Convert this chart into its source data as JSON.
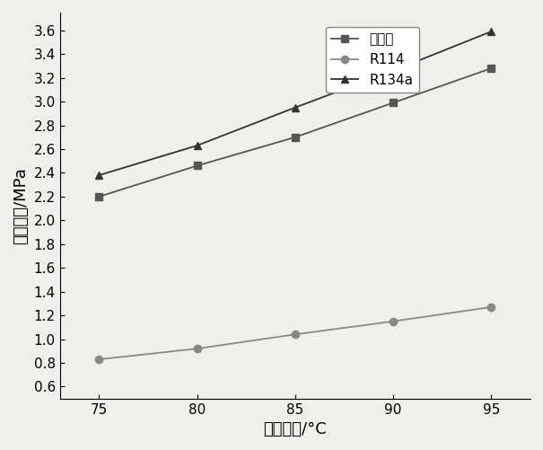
{
  "x": [
    75,
    80,
    85,
    90,
    95
  ],
  "series": [
    {
      "label": "新工质",
      "values": [
        2.2,
        2.46,
        2.7,
        2.99,
        3.28
      ],
      "color": "#555555",
      "marker": "s",
      "markersize": 6,
      "linewidth": 1.3
    },
    {
      "label": "R114",
      "values": [
        0.83,
        0.92,
        1.04,
        1.15,
        1.27
      ],
      "color": "#888888",
      "marker": "o",
      "markersize": 6,
      "linewidth": 1.3
    },
    {
      "label": "R134a",
      "values": [
        2.38,
        2.63,
        2.95,
        3.26,
        3.59
      ],
      "color": "#333333",
      "marker": "^",
      "markersize": 6,
      "linewidth": 1.3
    }
  ],
  "xlabel": "冷凝温度/°C",
  "ylabel": "冷凝压力/MPa",
  "xlim": [
    73,
    97
  ],
  "ylim": [
    0.5,
    3.75
  ],
  "yticks": [
    0.6,
    0.8,
    1.0,
    1.2,
    1.4,
    1.6,
    1.8,
    2.0,
    2.2,
    2.4,
    2.6,
    2.8,
    3.0,
    3.2,
    3.4,
    3.6
  ],
  "xticks": [
    75,
    80,
    85,
    90,
    95
  ],
  "background_color": "#f0f0ea",
  "label_fontsize": 13,
  "tick_fontsize": 11,
  "legend_fontsize": 11
}
